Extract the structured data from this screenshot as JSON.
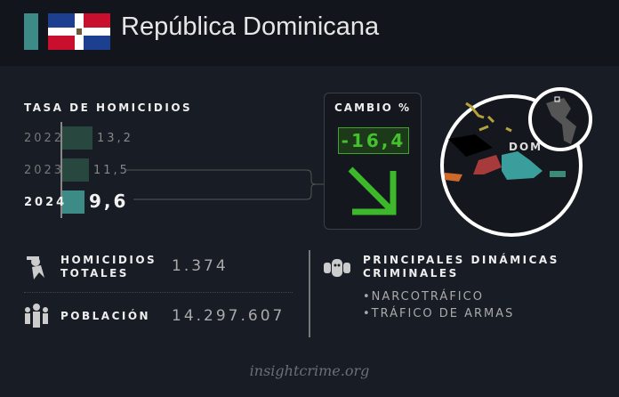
{
  "header": {
    "country": "República Dominicana",
    "flag_icon": "dominican-republic-flag",
    "accent": "#3d8b87"
  },
  "homicide_rate": {
    "title": "TASA DE HOMICIDIOS",
    "rows": [
      {
        "year": "2022",
        "value": "13,2",
        "num": 13.2,
        "color": "#27473f"
      },
      {
        "year": "2023",
        "value": "11,5",
        "num": 11.5,
        "color": "#27473f"
      },
      {
        "year": "2024",
        "value": "9,6",
        "num": 9.6,
        "color": "#3d8b87"
      }
    ]
  },
  "change": {
    "title": "CAMBIO %",
    "value": "-16,4",
    "direction": "down",
    "color": "#45c12e"
  },
  "map": {
    "label": "DOM"
  },
  "stats": {
    "homicides_label_1": "HOMICIDIOS",
    "homicides_label_2": "TOTALES",
    "homicides_value": "1.374",
    "population_label": "POBLACIÓN",
    "population_value": "14.297.607"
  },
  "dynamics": {
    "title_1": "PRINCIPALES DINÁMICAS",
    "title_2": "CRIMINALES",
    "items": [
      "•NARCOTRÁFICO",
      "•TRÁFICO DE ARMAS"
    ]
  },
  "footer": {
    "source": "insightcrime.org"
  }
}
